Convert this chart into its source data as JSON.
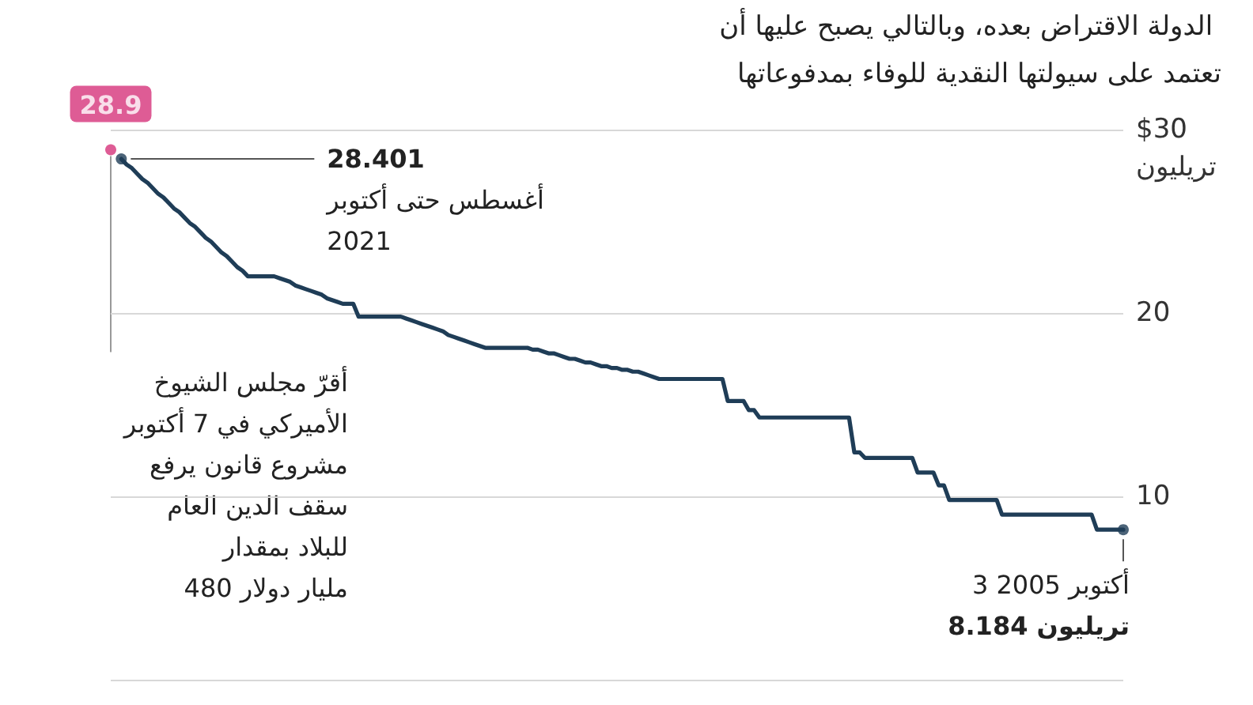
{
  "chart_data": {
    "type": "line",
    "title": "الدولة الاقتراض بعده، وبالتالي يصبح عليها أن تعتمد على سيولتها النقدية للوفاء بمدفوعاتها",
    "categories": [
      null,
      null,
      null,
      null,
      null,
      null,
      null,
      null,
      null,
      null,
      null,
      null,
      null,
      null,
      null,
      null,
      null,
      null,
      null,
      null,
      null,
      null,
      null,
      null,
      null,
      null,
      null,
      null,
      null,
      null,
      null,
      null,
      null,
      null,
      null,
      null,
      null,
      null,
      null,
      null,
      null,
      null,
      null,
      null,
      null,
      null,
      null,
      null,
      null,
      null,
      null,
      null,
      null,
      null,
      null,
      null,
      null,
      null,
      null,
      null,
      null,
      null,
      null,
      null,
      null,
      null,
      null,
      null,
      null,
      null,
      null,
      null,
      null,
      null,
      null,
      null,
      null,
      null,
      null,
      null,
      null,
      null,
      null,
      null,
      null,
      null,
      null,
      null,
      null,
      null,
      null,
      null,
      null,
      null,
      null,
      null,
      null,
      null,
      null,
      null,
      null,
      null,
      null,
      null,
      null,
      null,
      null,
      null,
      null,
      null,
      null,
      null,
      null,
      null,
      null,
      null,
      null,
      null,
      null,
      null,
      null,
      null,
      null,
      null,
      null,
      null,
      null,
      null,
      null,
      null,
      null,
      null,
      null,
      null,
      null,
      null,
      null,
      null,
      null,
      null,
      null,
      null,
      null,
      null,
      null,
      null,
      null,
      null,
      null,
      null,
      null,
      null,
      null,
      null,
      null,
      null,
      null,
      null,
      null,
      null,
      null,
      null,
      null,
      null,
      null,
      null,
      null,
      null,
      null,
      null,
      null,
      null,
      null,
      null,
      null,
      null,
      null,
      null,
      null,
      null,
      null,
      null,
      null,
      null,
      null,
      null,
      null,
      null,
      null,
      null,
      null,
      null,
      null
    ],
    "series": [
      {
        "color": "#1f3d57",
        "values": [
          null,
          null,
          28.401,
          28.1,
          27.9,
          27.6,
          27.3,
          27.1,
          26.8,
          26.5,
          26.3,
          26.0,
          25.7,
          25.5,
          25.2,
          24.9,
          24.7,
          24.4,
          24.1,
          23.9,
          23.6,
          23.3,
          23.1,
          22.8,
          22.5,
          22.3,
          22.0,
          22.0,
          22.0,
          22.0,
          22.0,
          22.0,
          21.9,
          21.8,
          21.7,
          21.5,
          21.4,
          21.3,
          21.2,
          21.1,
          21.0,
          20.8,
          20.7,
          20.6,
          20.5,
          20.5,
          20.5,
          19.8,
          19.8,
          19.8,
          19.8,
          19.8,
          19.8,
          19.8,
          19.8,
          19.8,
          19.7,
          19.6,
          19.5,
          19.4,
          19.3,
          19.2,
          19.1,
          19.0,
          18.8,
          18.7,
          18.6,
          18.5,
          18.4,
          18.3,
          18.2,
          18.1,
          18.1,
          18.1,
          18.1,
          18.1,
          18.1,
          18.1,
          18.1,
          18.1,
          18.0,
          18.0,
          17.9,
          17.8,
          17.8,
          17.7,
          17.6,
          17.5,
          17.5,
          17.4,
          17.3,
          17.3,
          17.2,
          17.1,
          17.1,
          17.0,
          17.0,
          16.9,
          16.9,
          16.8,
          16.8,
          16.7,
          16.6,
          16.5,
          16.4,
          16.4,
          16.4,
          16.4,
          16.4,
          16.4,
          16.4,
          16.4,
          16.4,
          16.4,
          16.4,
          16.4,
          16.4,
          15.2,
          15.2,
          15.2,
          15.2,
          14.7,
          14.7,
          14.3,
          14.3,
          14.3,
          14.3,
          14.3,
          14.3,
          14.3,
          14.3,
          14.3,
          14.3,
          14.3,
          14.3,
          14.3,
          14.3,
          14.3,
          14.3,
          14.3,
          14.3,
          12.4,
          12.4,
          12.1,
          12.1,
          12.1,
          12.1,
          12.1,
          12.1,
          12.1,
          12.1,
          12.1,
          12.1,
          11.3,
          11.3,
          11.3,
          11.3,
          10.6,
          10.6,
          9.8,
          9.8,
          9.8,
          9.8,
          9.8,
          9.8,
          9.8,
          9.8,
          9.8,
          9.8,
          9.0,
          9.0,
          9.0,
          9.0,
          9.0,
          9.0,
          9.0,
          9.0,
          9.0,
          9.0,
          9.0,
          9.0,
          9.0,
          9.0,
          9.0,
          9.0,
          9.0,
          9.0,
          8.184,
          8.184,
          8.184,
          8.184,
          8.184,
          8.184
        ]
      },
      {
        "type": "scatter",
        "color": "#d6337a",
        "values": [
          28.9,
          null,
          null,
          null,
          null,
          null,
          null,
          null,
          null,
          null,
          null,
          null,
          null,
          null,
          null,
          null,
          null,
          null,
          null,
          null,
          null,
          null,
          null,
          null,
          null,
          null,
          null,
          null,
          null,
          null,
          null,
          null,
          null,
          null,
          null,
          null,
          null,
          null,
          null,
          null,
          null,
          null,
          null,
          null,
          null,
          null,
          null,
          null,
          null,
          null,
          null,
          null,
          null,
          null,
          null,
          null,
          null,
          null,
          null,
          null,
          null,
          null,
          null,
          null,
          null,
          null,
          null,
          null,
          null,
          null,
          null,
          null,
          null,
          null,
          null,
          null,
          null,
          null,
          null,
          null,
          null,
          null,
          null,
          null,
          null,
          null,
          null,
          null,
          null,
          null,
          null,
          null,
          null,
          null,
          null,
          null,
          null,
          null,
          null,
          null,
          null,
          null,
          null,
          null,
          null,
          null,
          null,
          null,
          null,
          null,
          null,
          null,
          null,
          null,
          null,
          null,
          null,
          null,
          null,
          null,
          null,
          null,
          null,
          null,
          null,
          null,
          null,
          null,
          null,
          null,
          null,
          null,
          null,
          null,
          null,
          null,
          null,
          null,
          null,
          null,
          null,
          null,
          null,
          null,
          null,
          null,
          null,
          null,
          null,
          null,
          null,
          null,
          null,
          null,
          null,
          null,
          null,
          null,
          null,
          null,
          null,
          null,
          null,
          null,
          null,
          null,
          null,
          null,
          null,
          null,
          null,
          null,
          null,
          null,
          null,
          null,
          null,
          null,
          null,
          null,
          null,
          null,
          null,
          null,
          null,
          null,
          null,
          null,
          null,
          null,
          null,
          null,
          null
        ],
        "value_labels": [
          "28.9",
          null,
          null,
          null,
          null,
          null,
          null,
          null,
          null,
          null,
          null,
          null,
          null,
          null,
          null,
          null,
          null,
          null,
          null,
          null,
          null,
          null,
          null,
          null,
          null,
          null,
          null,
          null,
          null,
          null,
          null,
          null,
          null,
          null,
          null,
          null,
          null,
          null,
          null,
          null,
          null,
          null,
          null,
          null,
          null,
          null,
          null,
          null,
          null,
          null,
          null,
          null,
          null,
          null,
          null,
          null,
          null,
          null,
          null,
          null,
          null,
          null,
          null,
          null,
          null,
          null,
          null,
          null,
          null,
          null,
          null,
          null,
          null,
          null,
          null,
          null,
          null,
          null,
          null,
          null,
          null,
          null,
          null,
          null,
          null,
          null,
          null,
          null,
          null,
          null,
          null,
          null,
          null,
          null,
          null,
          null,
          null,
          null,
          null,
          null,
          null,
          null,
          null,
          null,
          null,
          null,
          null,
          null,
          null,
          null,
          null,
          null,
          null,
          null,
          null,
          null,
          null,
          null,
          null,
          null,
          null,
          null,
          null,
          null,
          null,
          null,
          null,
          null,
          null,
          null,
          null,
          null,
          null,
          null,
          null,
          null,
          null,
          null,
          null,
          null,
          null,
          null,
          null,
          null,
          null,
          null,
          null,
          null,
          null,
          null,
          null,
          null,
          null,
          null,
          null,
          null,
          null,
          null,
          null,
          null,
          null,
          null,
          null,
          null,
          null,
          null,
          null,
          null,
          null,
          null,
          null,
          null,
          null,
          null,
          null,
          null,
          null,
          null,
          null,
          null,
          null,
          null,
          null,
          null,
          null,
          null,
          null,
          null,
          null,
          null,
          null,
          null,
          null
        ]
      },
      {
        "type": "scatter",
        "color": "#1f3d57",
        "values": [
          null,
          null,
          28.401,
          null,
          null,
          null,
          null,
          null,
          null,
          null,
          null,
          null,
          null,
          null,
          null,
          null,
          null,
          null,
          null,
          null,
          null,
          null,
          null,
          null,
          null,
          null,
          null,
          null,
          null,
          null,
          null,
          null,
          null,
          null,
          null,
          null,
          null,
          null,
          null,
          null,
          null,
          null,
          null,
          null,
          null,
          null,
          null,
          null,
          null,
          null,
          null,
          null,
          null,
          null,
          null,
          null,
          null,
          null,
          null,
          null,
          null,
          null,
          null,
          null,
          null,
          null,
          null,
          null,
          null,
          null,
          null,
          null,
          null,
          null,
          null,
          null,
          null,
          null,
          null,
          null,
          null,
          null,
          null,
          null,
          null,
          null,
          null,
          null,
          null,
          null,
          null,
          null,
          null,
          null,
          null,
          null,
          null,
          null,
          null,
          null,
          null,
          null,
          null,
          null,
          null,
          null,
          null,
          null,
          null,
          null,
          null,
          null,
          null,
          null,
          null,
          null,
          null,
          null,
          null,
          null,
          null,
          null,
          null,
          null,
          null,
          null,
          null,
          null,
          null,
          null,
          null,
          null,
          null,
          null,
          null,
          null,
          null,
          null,
          null,
          null,
          null,
          null,
          null,
          null,
          null,
          null,
          null,
          null,
          null,
          null,
          null,
          null,
          null,
          null,
          null,
          null,
          null,
          null,
          null,
          null,
          null,
          null,
          null,
          null,
          null,
          null,
          null,
          null,
          null,
          null,
          null,
          null,
          null,
          null,
          null,
          null,
          null,
          null,
          null,
          null,
          null,
          null,
          null,
          null,
          null,
          null,
          null,
          null,
          null,
          null,
          null,
          null,
          8.184
        ]
      }
    ],
    "ylim": [
      0,
      30
    ],
    "yticks": [
      {
        "value": 30,
        "label": "$30\nتريليون"
      },
      20,
      10,
      {
        "value": 0,
        "label": null
      }
    ],
    "tick_labels": "y",
    "grid": "y",
    "line_style": "solid",
    "annotations": [
      "28.401\nأغسطس حتى أكتوبر\n2021",
      "أقرّ مجلس الشيوخ\nالأميركي في 7 أكتوبر\nمشروع قانون يرفع\nسقف الدين العام\nللبلاد بمقدار\n480 مليار دولار",
      "3 أكتوبر 2005\n8.184 تريليون"
    ]
  }
}
